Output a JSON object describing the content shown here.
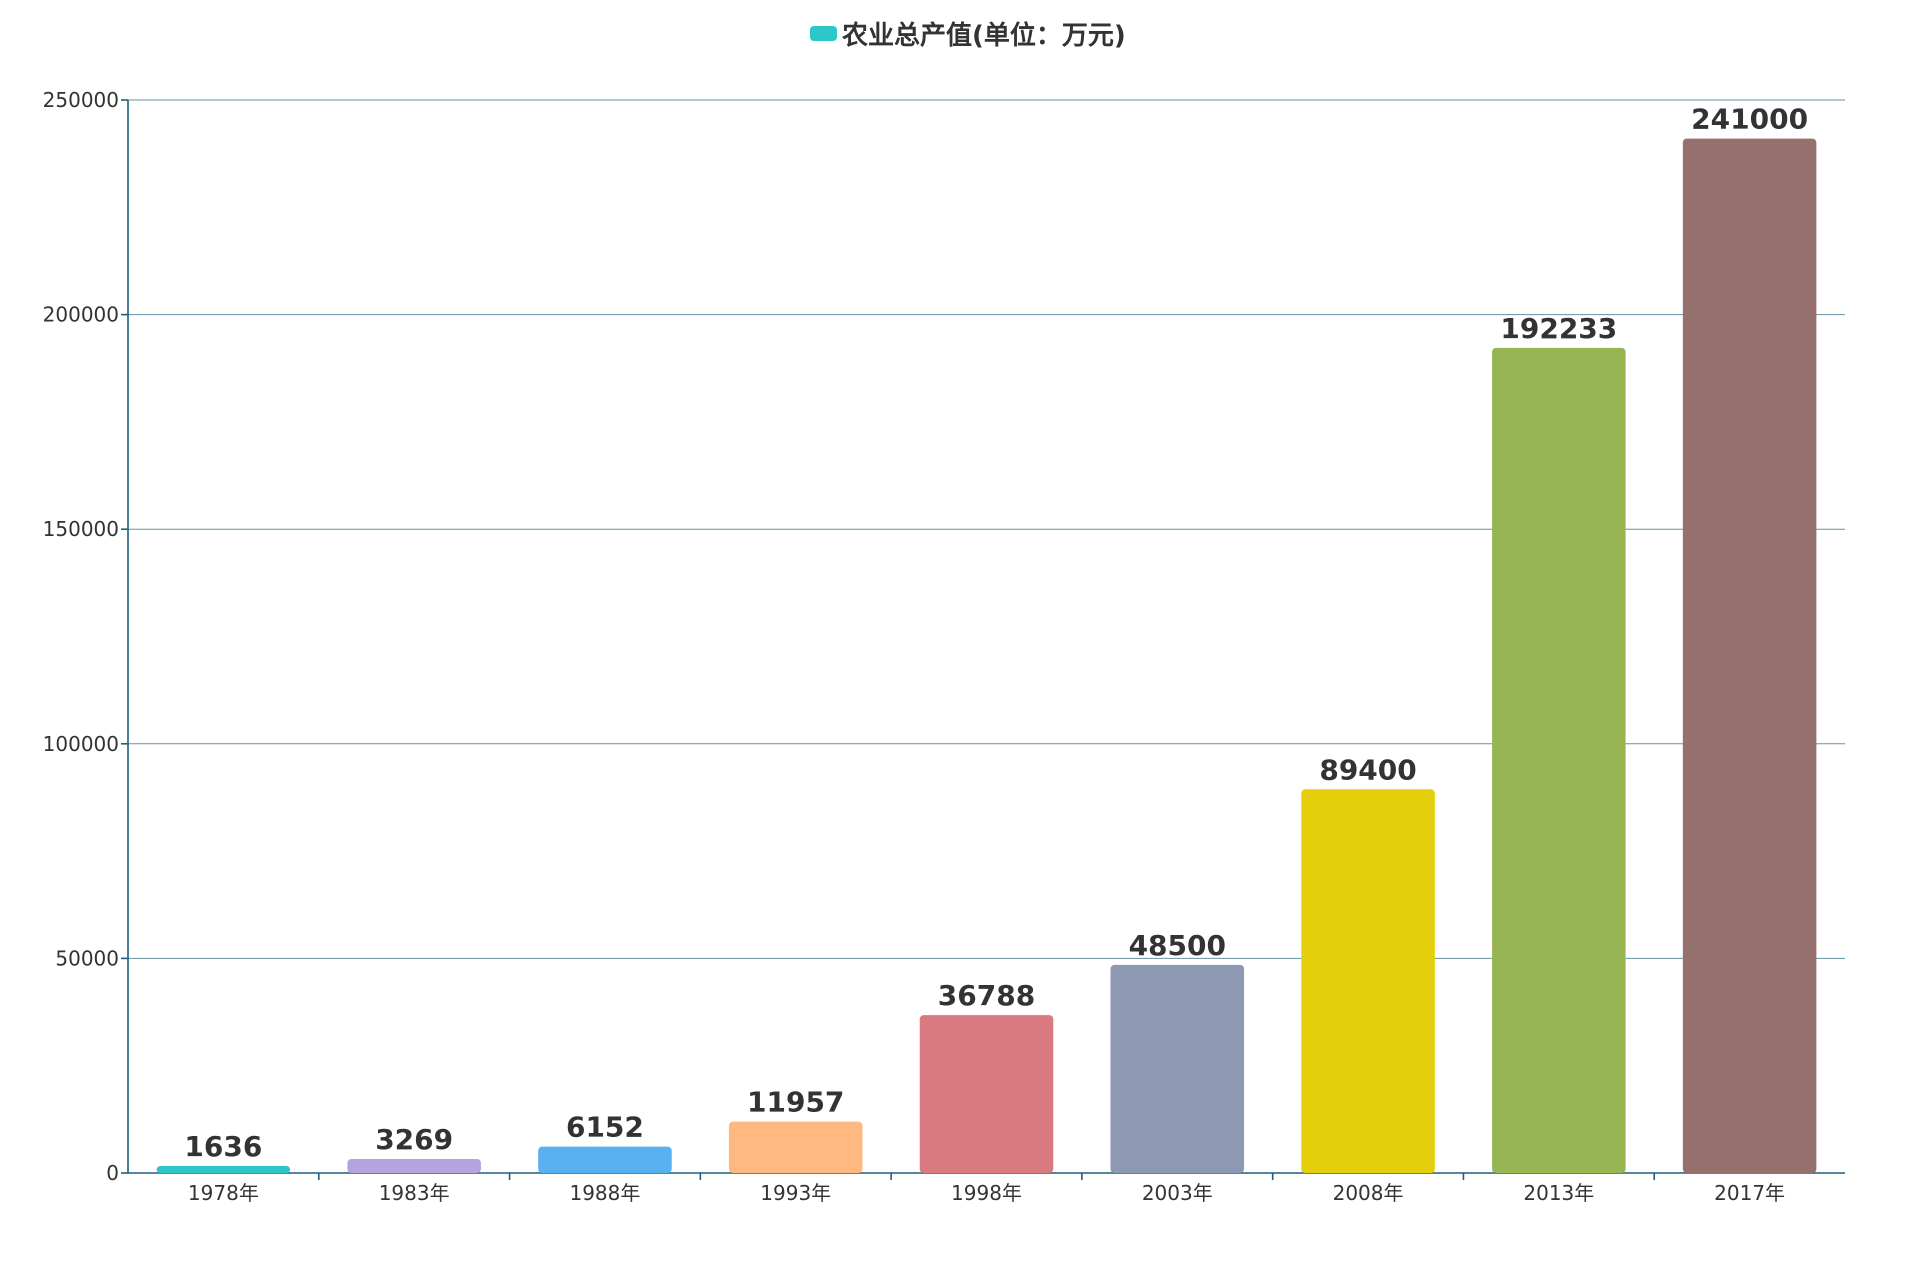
{
  "chart_data": {
    "type": "bar",
    "legend": [
      {
        "name": "农业总产值(单位：万元)",
        "color": "#2ec7c9"
      }
    ],
    "categories": [
      "1978年",
      "1983年",
      "1988年",
      "1993年",
      "1998年",
      "2003年",
      "2008年",
      "2013年",
      "2017年"
    ],
    "series": [
      {
        "name": "农业总产值(单位：万元)",
        "values": [
          1636,
          3269,
          6152,
          11957,
          36788,
          48500,
          89400,
          192233,
          241000
        ]
      }
    ],
    "ylim": [
      0,
      250000
    ],
    "yticks": [
      0,
      50000,
      100000,
      150000,
      200000,
      250000
    ],
    "grid": true,
    "legend_position": "top-center",
    "bar_colors": [
      "#2ec7c9",
      "#b6a2de",
      "#5ab1ef",
      "#ffb980",
      "#d87a80",
      "#8d98b3",
      "#e5cf0d",
      "#97b552",
      "#95706d"
    ]
  }
}
